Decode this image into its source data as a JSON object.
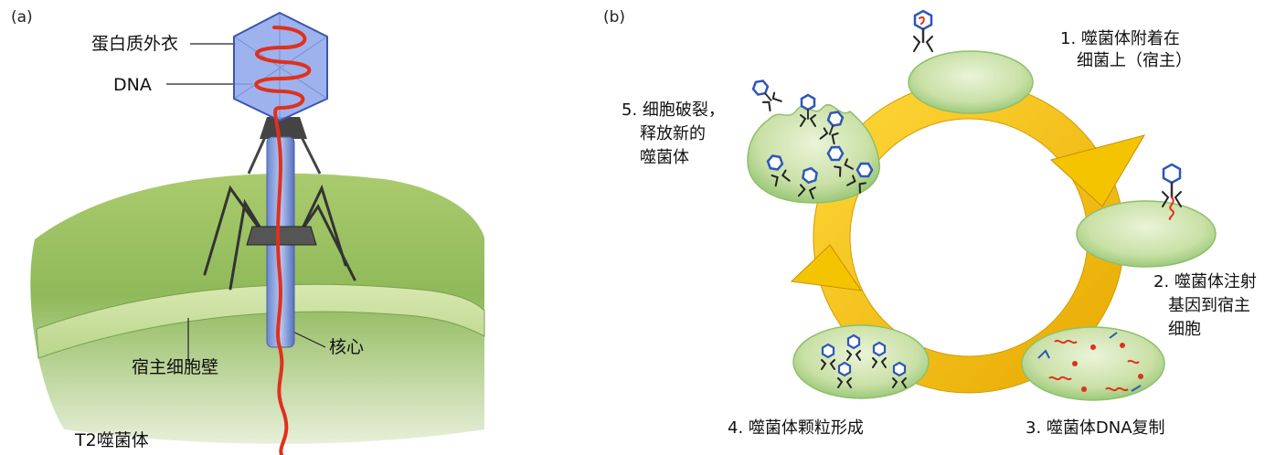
{
  "panel_a": {
    "tag": "(a)",
    "labels": {
      "coat": "蛋白质外衣",
      "dna": "DNA",
      "core": "核心",
      "wall": "宿主细胞壁",
      "title": "T2噬菌体"
    }
  },
  "panel_b": {
    "tag": "(b)",
    "steps": [
      {
        "line1": "1. 噬菌体附着在",
        "line2": "细菌上（宿主）"
      },
      {
        "line1": "2. 噬菌体注射",
        "line2": "基因到宿主",
        "line3": "细胞"
      },
      {
        "line1": "3. 噬菌体DNA复制"
      },
      {
        "line1": "4. 噬菌体颗粒形成"
      },
      {
        "line1": "5. 细胞破裂，",
        "line2": "释放新的",
        "line3": "噬菌体"
      }
    ]
  },
  "colors": {
    "cell_fill": "#c9e0a6",
    "cell_edge": "#8fbf6a",
    "host_wall": "#9ec46a",
    "arrow": "#f5c400",
    "dna": "#e0301e",
    "phage_head": "#3a63b8"
  }
}
